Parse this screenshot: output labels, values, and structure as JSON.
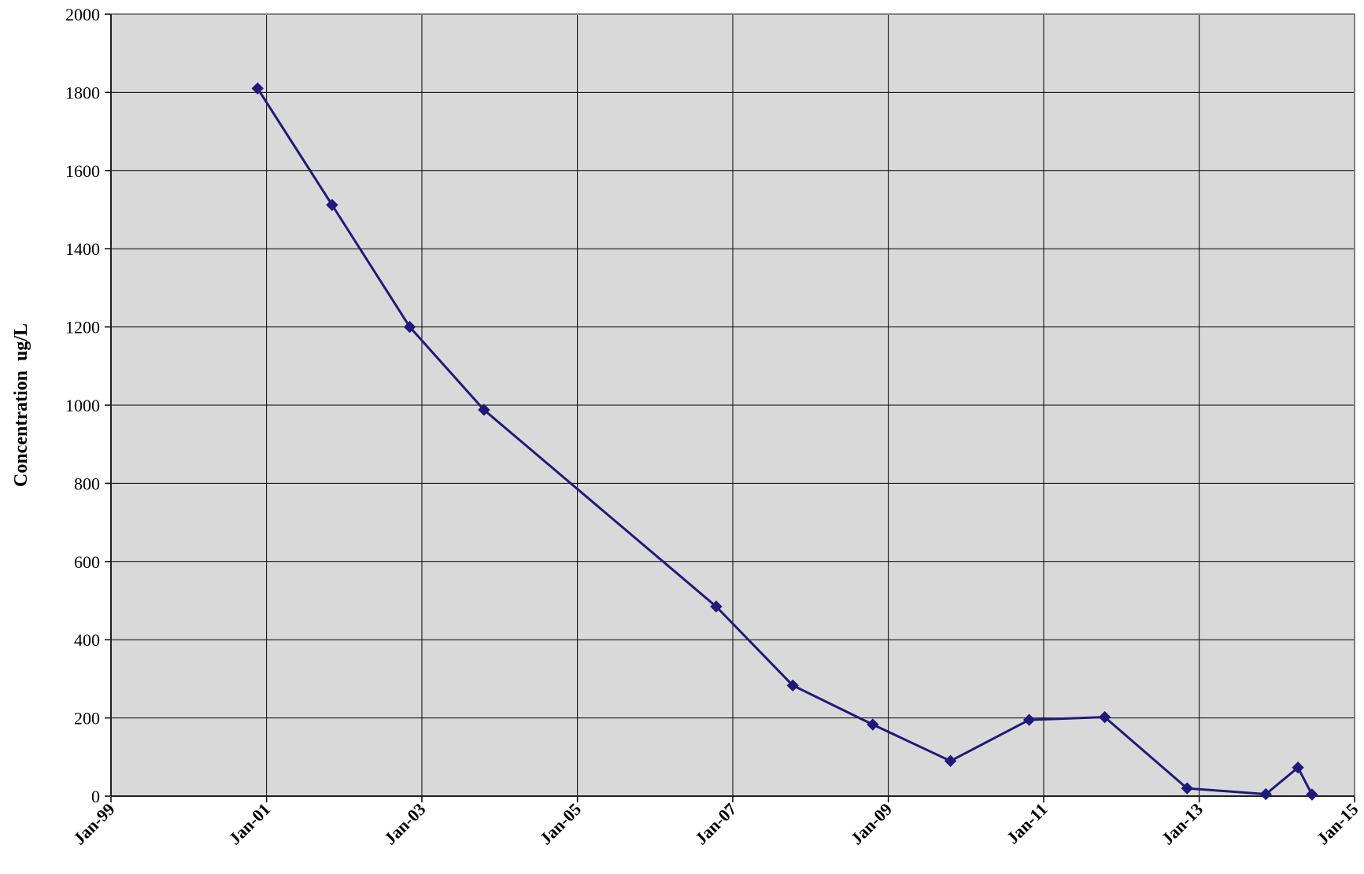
{
  "chart_data": {
    "type": "line",
    "title": "",
    "xlabel": "",
    "ylabel": "Concentration  ug/L",
    "ylim": [
      0,
      2000
    ],
    "yticks": [
      "0",
      "200",
      "400",
      "600",
      "800",
      "1000",
      "1200",
      "1400",
      "1600",
      "1800",
      "2000"
    ],
    "xlim": [
      "1999-01-01",
      "2015-01-01"
    ],
    "xtick_labels": [
      {
        "label": "Jan-99",
        "date": "1999-01-01"
      },
      {
        "label": "Jan-01",
        "date": "2001-01-01"
      },
      {
        "label": "Jan-03",
        "date": "2003-01-01"
      },
      {
        "label": "Jan-05",
        "date": "2005-01-01"
      },
      {
        "label": "Jan-07",
        "date": "2007-01-01"
      },
      {
        "label": "Jan-09",
        "date": "2009-01-01"
      },
      {
        "label": "Jan-11",
        "date": "2011-01-01"
      },
      {
        "label": "Jan-13",
        "date": "2013-01-01"
      },
      {
        "label": "Jan-15",
        "date": "2015-01-01"
      }
    ],
    "grid": true,
    "plot_background": "#d9d9d9",
    "series": [
      {
        "color": "#1f1a7a",
        "marker": "diamond",
        "points": [
          {
            "x": "2000-11-20",
            "y": 1810
          },
          {
            "x": "2001-11-05",
            "y": 1512
          },
          {
            "x": "2002-11-05",
            "y": 1200
          },
          {
            "x": "2003-10-20",
            "y": 988
          },
          {
            "x": "2006-10-15",
            "y": 485
          },
          {
            "x": "2007-10-10",
            "y": 283
          },
          {
            "x": "2008-10-20",
            "y": 183
          },
          {
            "x": "2009-10-20",
            "y": 90
          },
          {
            "x": "2010-10-25",
            "y": 195
          },
          {
            "x": "2011-10-15",
            "y": 202
          },
          {
            "x": "2012-11-05",
            "y": 20
          },
          {
            "x": "2013-11-10",
            "y": 5
          },
          {
            "x": "2014-04-10",
            "y": 73
          },
          {
            "x": "2014-06-15",
            "y": 4
          }
        ]
      }
    ]
  }
}
